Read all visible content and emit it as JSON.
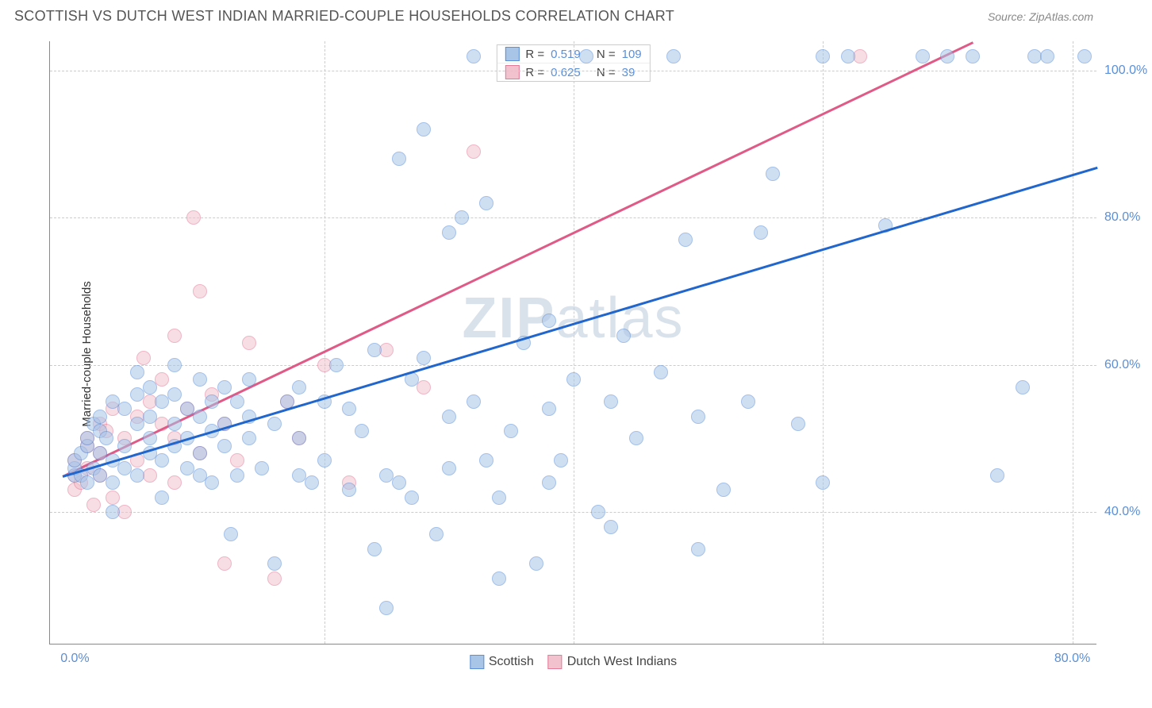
{
  "header": {
    "title": "SCOTTISH VS DUTCH WEST INDIAN MARRIED-COUPLE HOUSEHOLDS CORRELATION CHART",
    "source_label": "Source: ZipAtlas.com"
  },
  "watermark": {
    "prefix": "ZIP",
    "suffix": "atlas"
  },
  "chart": {
    "type": "scatter",
    "ylabel": "Married-couple Households",
    "background_color": "#ffffff",
    "grid_color": "#cccccc",
    "axis_color": "#888888",
    "label_color": "#5b8fd6",
    "xlim": [
      -2,
      82
    ],
    "ylim": [
      22,
      104
    ],
    "xtick_labels": [
      "0.0%",
      "80.0%"
    ],
    "xtick_positions": [
      0,
      80
    ],
    "ytick_labels": [
      "40.0%",
      "60.0%",
      "80.0%",
      "100.0%"
    ],
    "ytick_positions": [
      40,
      60,
      80,
      100
    ],
    "vgrid_positions": [
      20,
      40,
      60,
      80
    ],
    "series": {
      "scottish": {
        "label": "Scottish",
        "fill_color": "#a8c5e8",
        "stroke_color": "#5b8fd6",
        "fill_opacity": 0.55,
        "marker_radius": 9,
        "trend": {
          "color": "#2166cc",
          "x1": -1,
          "y1": 45,
          "x2": 82,
          "y2": 87
        },
        "R": "0.519",
        "N": "109",
        "points": [
          [
            0,
            45
          ],
          [
            0,
            46
          ],
          [
            0,
            47
          ],
          [
            0.5,
            48
          ],
          [
            0.5,
            45
          ],
          [
            1,
            44
          ],
          [
            1,
            49
          ],
          [
            1,
            50
          ],
          [
            1.5,
            46
          ],
          [
            1.5,
            52
          ],
          [
            2,
            45
          ],
          [
            2,
            48
          ],
          [
            2,
            51
          ],
          [
            2,
            53
          ],
          [
            2.5,
            50
          ],
          [
            3,
            44
          ],
          [
            3,
            47
          ],
          [
            3,
            55
          ],
          [
            3,
            40
          ],
          [
            4,
            46
          ],
          [
            4,
            49
          ],
          [
            4,
            54
          ],
          [
            5,
            45
          ],
          [
            5,
            52
          ],
          [
            5,
            56
          ],
          [
            5,
            59
          ],
          [
            6,
            48
          ],
          [
            6,
            53
          ],
          [
            6,
            57
          ],
          [
            6,
            50
          ],
          [
            7,
            47
          ],
          [
            7,
            55
          ],
          [
            7,
            42
          ],
          [
            8,
            49
          ],
          [
            8,
            56
          ],
          [
            8,
            52
          ],
          [
            8,
            60
          ],
          [
            9,
            54
          ],
          [
            9,
            50
          ],
          [
            9,
            46
          ],
          [
            10,
            45
          ],
          [
            10,
            53
          ],
          [
            10,
            58
          ],
          [
            10,
            48
          ],
          [
            11,
            55
          ],
          [
            11,
            44
          ],
          [
            11,
            51
          ],
          [
            12,
            52
          ],
          [
            12,
            57
          ],
          [
            12,
            49
          ],
          [
            12.5,
            37
          ],
          [
            13,
            55
          ],
          [
            13,
            45
          ],
          [
            14,
            53
          ],
          [
            14,
            50
          ],
          [
            14,
            58
          ],
          [
            15,
            46
          ],
          [
            16,
            52
          ],
          [
            16,
            33
          ],
          [
            17,
            55
          ],
          [
            18,
            57
          ],
          [
            18,
            50
          ],
          [
            18,
            45
          ],
          [
            19,
            44
          ],
          [
            20,
            55
          ],
          [
            20,
            47
          ],
          [
            21,
            60
          ],
          [
            22,
            54
          ],
          [
            22,
            43
          ],
          [
            23,
            51
          ],
          [
            24,
            62
          ],
          [
            24,
            35
          ],
          [
            25,
            27
          ],
          [
            25,
            45
          ],
          [
            26,
            44
          ],
          [
            26,
            88
          ],
          [
            27,
            58
          ],
          [
            27,
            42
          ],
          [
            28,
            92
          ],
          [
            28,
            61
          ],
          [
            29,
            37
          ],
          [
            30,
            53
          ],
          [
            30,
            46
          ],
          [
            30,
            78
          ],
          [
            31,
            80
          ],
          [
            32,
            102
          ],
          [
            32,
            55
          ],
          [
            33,
            82
          ],
          [
            33,
            47
          ],
          [
            34,
            31
          ],
          [
            34,
            42
          ],
          [
            35,
            51
          ],
          [
            36,
            63
          ],
          [
            37,
            33
          ],
          [
            38,
            54
          ],
          [
            38,
            66
          ],
          [
            38,
            44
          ],
          [
            39,
            47
          ],
          [
            40,
            58
          ],
          [
            41,
            102
          ],
          [
            42,
            40
          ],
          [
            43,
            55
          ],
          [
            43,
            38
          ],
          [
            44,
            64
          ],
          [
            45,
            50
          ],
          [
            47,
            59
          ],
          [
            48,
            102
          ],
          [
            49,
            77
          ],
          [
            50,
            35
          ],
          [
            50,
            53
          ],
          [
            52,
            43
          ],
          [
            54,
            55
          ],
          [
            55,
            78
          ],
          [
            56,
            86
          ],
          [
            58,
            52
          ],
          [
            60,
            44
          ],
          [
            60,
            102
          ],
          [
            62,
            102
          ],
          [
            65,
            79
          ],
          [
            68,
            102
          ],
          [
            70,
            102
          ],
          [
            72,
            102
          ],
          [
            74,
            45
          ],
          [
            76,
            57
          ],
          [
            77,
            102
          ],
          [
            78,
            102
          ],
          [
            81,
            102
          ]
        ]
      },
      "dutch": {
        "label": "Dutch West Indians",
        "fill_color": "#f2c2ce",
        "stroke_color": "#e37a98",
        "fill_opacity": 0.55,
        "marker_radius": 9,
        "trend": {
          "color": "#e05a87",
          "x1": -1,
          "y1": 45,
          "x2": 72,
          "y2": 104
        },
        "R": "0.625",
        "N": "39",
        "points": [
          [
            0,
            43
          ],
          [
            0,
            45
          ],
          [
            0,
            47
          ],
          [
            0.5,
            44
          ],
          [
            1,
            46
          ],
          [
            1,
            49
          ],
          [
            1,
            50
          ],
          [
            1.5,
            41
          ],
          [
            2,
            48
          ],
          [
            2,
            52
          ],
          [
            2,
            45
          ],
          [
            2.5,
            51
          ],
          [
            3,
            42
          ],
          [
            3,
            54
          ],
          [
            4,
            50
          ],
          [
            4,
            40
          ],
          [
            5,
            53
          ],
          [
            5,
            47
          ],
          [
            5.5,
            61
          ],
          [
            6,
            45
          ],
          [
            6,
            55
          ],
          [
            7,
            52
          ],
          [
            7,
            58
          ],
          [
            8,
            50
          ],
          [
            8,
            44
          ],
          [
            8,
            64
          ],
          [
            9,
            54
          ],
          [
            9.5,
            80
          ],
          [
            10,
            48
          ],
          [
            10,
            70
          ],
          [
            11,
            56
          ],
          [
            12,
            52
          ],
          [
            12,
            33
          ],
          [
            13,
            47
          ],
          [
            14,
            63
          ],
          [
            16,
            31
          ],
          [
            17,
            55
          ],
          [
            18,
            50
          ],
          [
            20,
            60
          ],
          [
            22,
            44
          ],
          [
            25,
            62
          ],
          [
            28,
            57
          ],
          [
            32,
            89
          ],
          [
            63,
            102
          ]
        ]
      }
    }
  },
  "legend_top": {
    "rows": [
      {
        "swatch_fill": "#a8c5e8",
        "swatch_border": "#5b8fd6",
        "r_label": "R =",
        "r_val": "0.519",
        "n_label": "N =",
        "n_val": "109"
      },
      {
        "swatch_fill": "#f2c2ce",
        "swatch_border": "#e37a98",
        "r_label": "R =",
        "r_val": "0.625",
        "n_label": "N =",
        "n_val": "39"
      }
    ]
  },
  "legend_bottom": {
    "items": [
      {
        "swatch_fill": "#a8c5e8",
        "swatch_border": "#5b8fd6",
        "label": "Scottish"
      },
      {
        "swatch_fill": "#f2c2ce",
        "swatch_border": "#e37a98",
        "label": "Dutch West Indians"
      }
    ]
  }
}
